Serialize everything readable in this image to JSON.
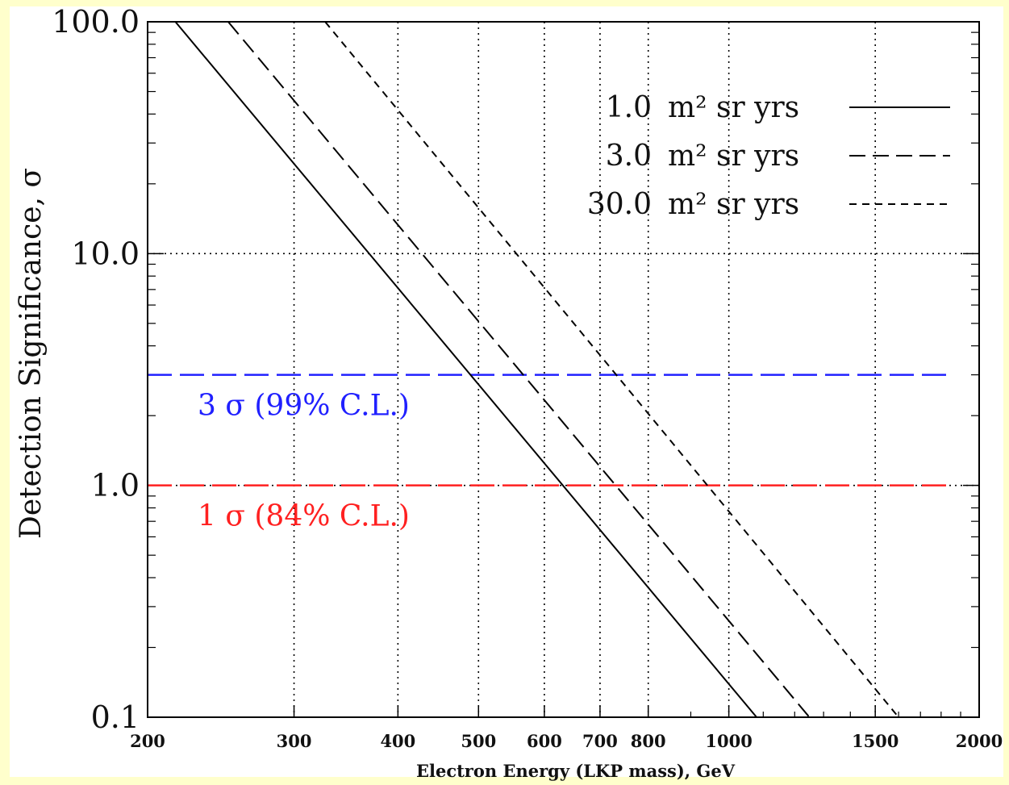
{
  "chart_data": {
    "type": "line",
    "xlabel": "Electron Energy (LKP mass), GeV",
    "ylabel": "Detection Significance, σ",
    "x_scale": "log",
    "y_scale": "log",
    "xlim": [
      200,
      2000
    ],
    "ylim": [
      0.1,
      100
    ],
    "x_ticks": [
      200,
      300,
      400,
      500,
      600,
      700,
      800,
      1000,
      1500,
      2000
    ],
    "x_tick_labels": [
      "200",
      "300",
      "400",
      "500",
      "600",
      "700",
      "800",
      "1000",
      "1500",
      "2000"
    ],
    "y_ticks": [
      0.1,
      1,
      10,
      100
    ],
    "y_tick_labels": [
      "0.1",
      "1.0",
      "10.0",
      "100.0"
    ],
    "grid": "dotted",
    "legend_position": "top-right",
    "series": [
      {
        "name": "1.0 m² sr yrs",
        "legend_label": "1.0",
        "style": "solid",
        "x": [
          216,
          1080
        ],
        "y": [
          100,
          0.1
        ]
      },
      {
        "name": "3.0 m² sr yrs",
        "legend_label": "3.0",
        "style": "dashed",
        "x": [
          250,
          1250
        ],
        "y": [
          100,
          0.1
        ]
      },
      {
        "name": "30.0 m² sr yrs",
        "legend_label": "30.0",
        "style": "dotted-dash",
        "x": [
          327,
          1600
        ],
        "y": [
          100,
          0.1
        ]
      }
    ],
    "legend_unit": "m² sr yrs",
    "reference_lines": [
      {
        "y": 3.0,
        "label": "3 σ (99% C.L.)",
        "color": "#2020ff"
      },
      {
        "y": 1.0,
        "label": "1 σ (84% C.L.)",
        "color": "#ff2020"
      }
    ]
  }
}
